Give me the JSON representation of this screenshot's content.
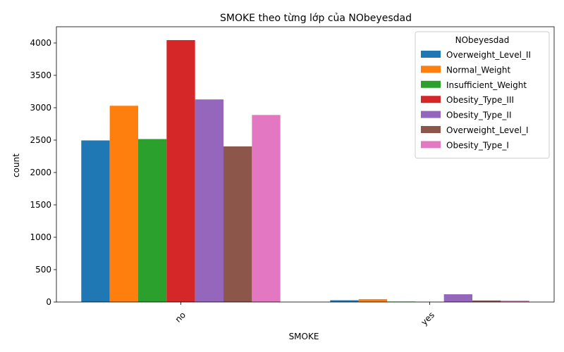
{
  "chart_data": {
    "type": "bar",
    "title": "SMOKE theo từng lớp của NObeyesdad",
    "xlabel": "SMOKE",
    "ylabel": "count",
    "categories": [
      "no",
      "yes"
    ],
    "ylim": [
      0,
      4250
    ],
    "yticks": [
      0,
      500,
      1000,
      1500,
      2000,
      2500,
      3000,
      3500,
      4000
    ],
    "grid": false,
    "legend": {
      "title": "NObeyesdad",
      "placement": "top-right"
    },
    "series": [
      {
        "name": "Overweight_Level_II",
        "color": "#1f77b4",
        "values": [
          2495,
          27
        ]
      },
      {
        "name": "Normal_Weight",
        "color": "#ff7f0e",
        "values": [
          3030,
          44
        ]
      },
      {
        "name": "Insufficient_Weight",
        "color": "#2ca02c",
        "values": [
          2516,
          7
        ]
      },
      {
        "name": "Obesity_Type_III",
        "color": "#d62728",
        "values": [
          4044,
          2
        ]
      },
      {
        "name": "Obesity_Type_II",
        "color": "#9467bd",
        "values": [
          3128,
          120
        ]
      },
      {
        "name": "Overweight_Level_I",
        "color": "#8c564b",
        "values": [
          2403,
          24
        ]
      },
      {
        "name": "Obesity_Type_I",
        "color": "#e377c2",
        "values": [
          2888,
          22
        ]
      }
    ]
  }
}
